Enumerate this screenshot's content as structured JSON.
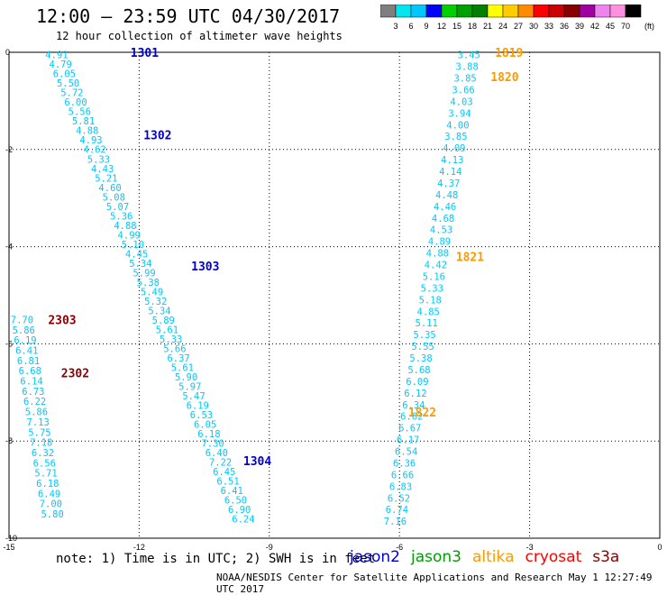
{
  "header": {
    "title": "12:00 – 23:59 UTC 04/30/2017",
    "subtitle": "12 hour collection of altimeter wave heights"
  },
  "scale": {
    "labels": [
      "3",
      "6",
      "9",
      "12",
      "15",
      "18",
      "21",
      "24",
      "27",
      "30",
      "33",
      "36",
      "39",
      "42",
      "45",
      "70"
    ],
    "unit": "(ft)",
    "colors": [
      "#7f7f7f",
      "#00e5ee",
      "#00c8ff",
      "#0000ff",
      "#00d000",
      "#00a000",
      "#008000",
      "#ffff00",
      "#ffcc00",
      "#ff8c00",
      "#ff0000",
      "#cc0000",
      "#880000",
      "#a000a0",
      "#ee82ee",
      "#ff90e0",
      "#000000"
    ]
  },
  "note": "note:  1) Time is in UTC;  2) SWH is in feet",
  "footer": "NOAA/NESDIS Center for Satellite Applications and Research    May  1 12:27:49 UTC 2017",
  "satellites": [
    {
      "name": "jason2",
      "color": "#0000cc"
    },
    {
      "name": "jason3",
      "color": "#00a000"
    },
    {
      "name": "altika",
      "color": "#ff9900"
    },
    {
      "name": "cryosat",
      "color": "#ff0000"
    },
    {
      "name": "s3a",
      "color": "#880000"
    }
  ],
  "chart_data": {
    "type": "scatter",
    "xlim": [
      -15,
      0
    ],
    "ylim": [
      -10,
      0
    ],
    "xticks": [
      "-15",
      "-12",
      "-9",
      "-6",
      "-3",
      "0"
    ],
    "yticks": [
      "0",
      "-2",
      "-4",
      "-6",
      "-8",
      "-10"
    ],
    "grid": true,
    "value_color": "#00c8ff",
    "tracks": [
      {
        "x0": -13.9,
        "y0": -0.05,
        "x1": -9.6,
        "y1": -9.6,
        "values": [
          "4.91",
          "4.79",
          "6.05",
          "5.50",
          "5.72",
          "6.00",
          "5.56",
          "5.81",
          "4.88",
          "4.93",
          "4.62",
          "5.33",
          "4.43",
          "5.21",
          "4.60",
          "5.08",
          "5.07",
          "5.36",
          "4.88",
          "4.99",
          "5.10",
          "4.45",
          "5.34",
          "5.99",
          "5.38",
          "5.49",
          "5.32",
          "5.34",
          "5.89",
          "5.61",
          "5.33",
          "5.66",
          "6.37",
          "5.61",
          "5.90",
          "5.97",
          "5.47",
          "6.19",
          "6.53",
          "6.05",
          "6.18",
          "7.30",
          "6.40",
          "7.22",
          "6.45",
          "6.51",
          "6.41",
          "6.50",
          "6.90",
          "6.24"
        ]
      },
      {
        "x0": -4.4,
        "y0": -0.05,
        "x1": -6.1,
        "y1": -9.65,
        "values": [
          "3.45",
          "3.88",
          "3.85",
          "3.66",
          "4.03",
          "3.94",
          "4.00",
          "3.85",
          "4.09",
          "4.13",
          "4.14",
          "4.37",
          "4.48",
          "4.46",
          "4.68",
          "4.53",
          "4.89",
          "4.88",
          "4.42",
          "5.16",
          "5.33",
          "5.18",
          "4.85",
          "5.11",
          "5.35",
          "5.55",
          "5.38",
          "5.68",
          "6.09",
          "6.12",
          "6.34",
          "6.62",
          "6.67",
          "6.17",
          "6.54",
          "6.36",
          "6.66",
          "6.83",
          "6.52",
          "6.74",
          "7.16"
        ]
      },
      {
        "x0": -14.7,
        "y0": -5.5,
        "x1": -14.0,
        "y1": -9.5,
        "values": [
          "7.70",
          "5.86",
          "6.19",
          "6.41",
          "6.81",
          "6.68",
          "6.14",
          "6.73",
          "6.22",
          "5.86",
          "7.13",
          "5.75",
          "7.18",
          "6.32",
          "6.56",
          "5.71",
          "6.18",
          "6.49",
          "7.00",
          "5.80"
        ]
      }
    ],
    "pass_labels": [
      {
        "text": "1301",
        "x": -12.2,
        "y": 0,
        "color": "#0000cc"
      },
      {
        "text": "1302",
        "x": -11.9,
        "y": -1.7,
        "color": "#0000cc"
      },
      {
        "text": "1303",
        "x": -10.8,
        "y": -4.4,
        "color": "#0000cc"
      },
      {
        "text": "1304",
        "x": -9.6,
        "y": -8.4,
        "color": "#0000cc"
      },
      {
        "text": "1819",
        "x": -3.8,
        "y": 0,
        "color": "#ff9900"
      },
      {
        "text": "1820",
        "x": -3.9,
        "y": -0.5,
        "color": "#ff9900"
      },
      {
        "text": "1821",
        "x": -4.7,
        "y": -4.2,
        "color": "#ff9900"
      },
      {
        "text": "1822",
        "x": -5.8,
        "y": -7.4,
        "color": "#ff9900"
      },
      {
        "text": "2303",
        "x": -14.1,
        "y": -5.5,
        "color": "#880000"
      },
      {
        "text": "2302",
        "x": -13.8,
        "y": -6.6,
        "color": "#880000"
      }
    ]
  }
}
